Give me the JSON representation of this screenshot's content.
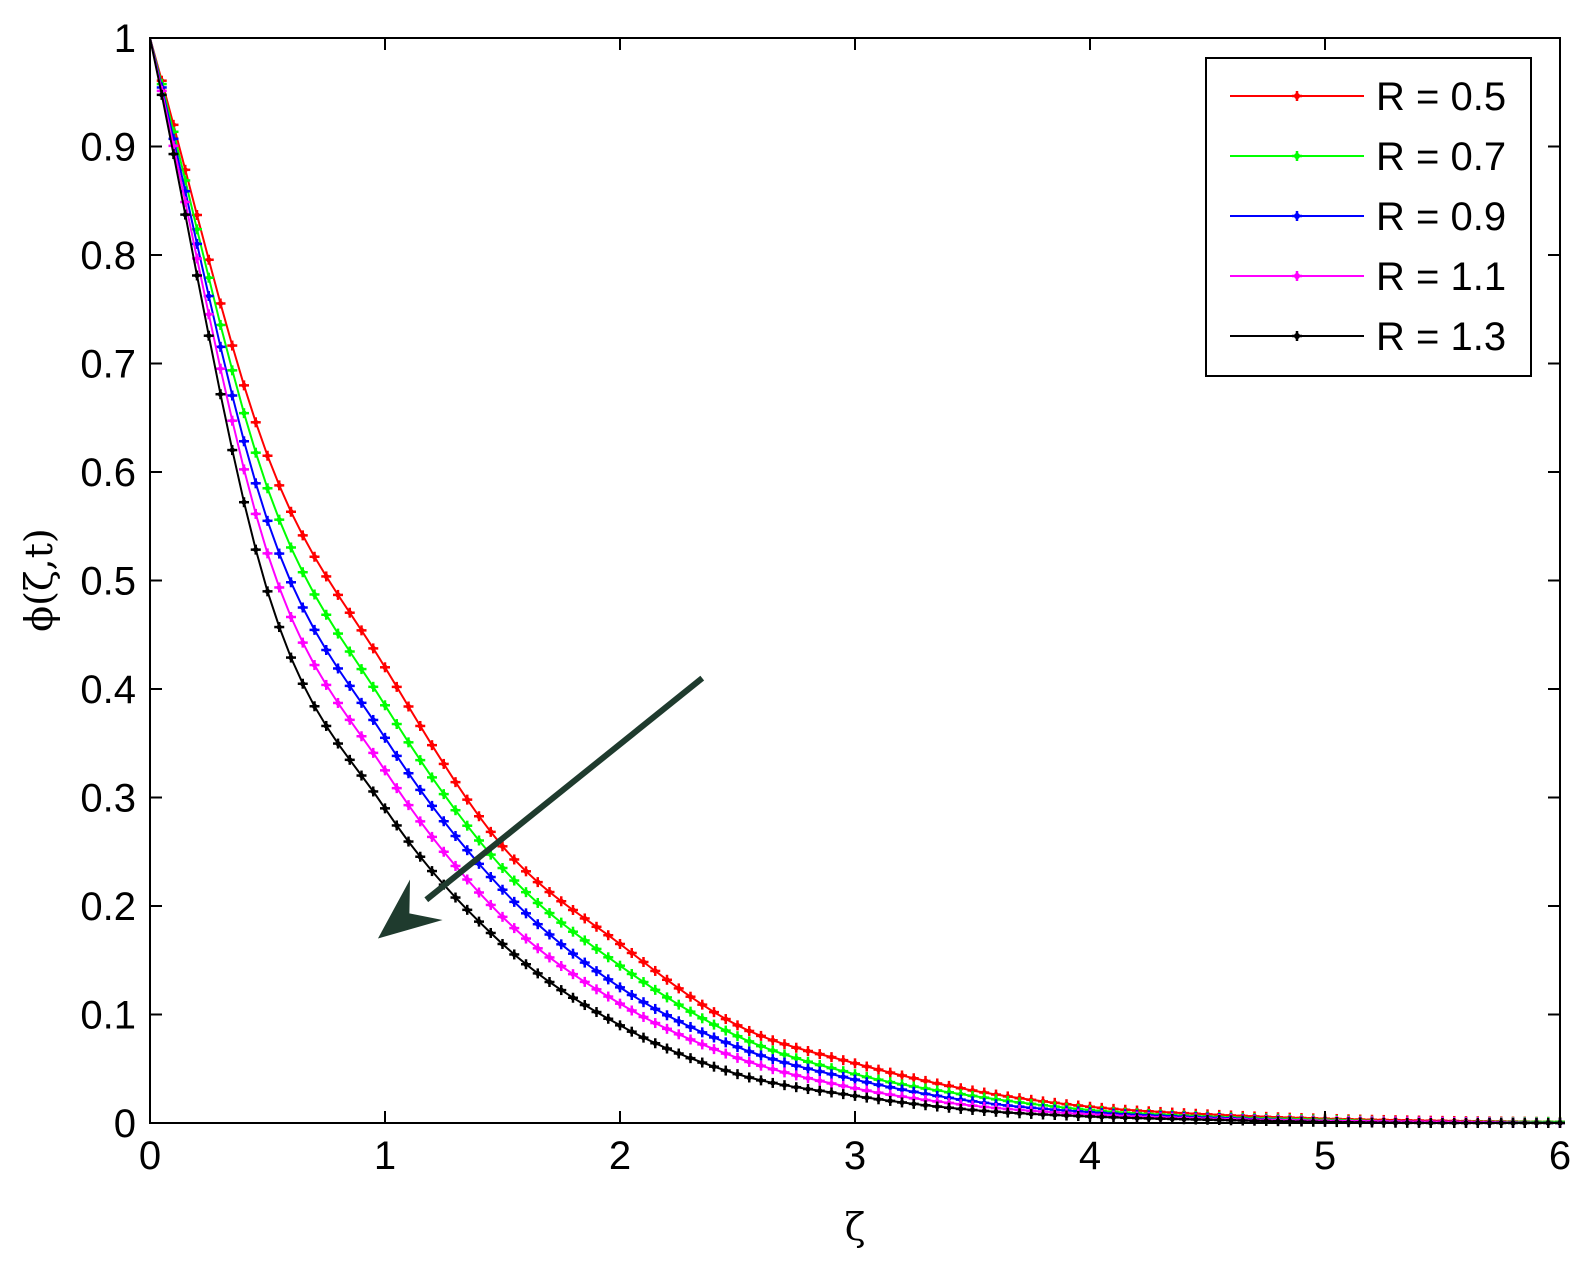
{
  "chart_data": {
    "type": "line",
    "title": "",
    "xlabel": "ζ",
    "ylabel": "ϕ(ζ,t)",
    "xlim": [
      0,
      6
    ],
    "ylim": [
      0,
      1
    ],
    "xticks": [
      "0",
      "1",
      "2",
      "3",
      "4",
      "5",
      "6"
    ],
    "yticks": [
      "0",
      "0.1",
      "0.2",
      "0.3",
      "0.4",
      "0.5",
      "0.6",
      "0.7",
      "0.8",
      "0.9",
      "1"
    ],
    "grid": false,
    "legend_position": "top-right",
    "x": [
      0,
      0.5,
      1,
      1.5,
      2,
      2.5,
      3,
      3.5,
      4,
      4.5,
      5,
      5.5,
      6
    ],
    "series": [
      {
        "name": "R = 0.5",
        "color": "#ff0000",
        "values": [
          1,
          0.615,
          0.42,
          0.255,
          0.165,
          0.09,
          0.055,
          0.03,
          0.015,
          0.008,
          0.004,
          0.002,
          0.001
        ]
      },
      {
        "name": "R = 0.7",
        "color": "#00ff00",
        "values": [
          1,
          0.585,
          0.385,
          0.235,
          0.145,
          0.08,
          0.045,
          0.025,
          0.012,
          0.006,
          0.003,
          0.001,
          0.001
        ]
      },
      {
        "name": "R = 0.9",
        "color": "#0000ff",
        "values": [
          1,
          0.555,
          0.355,
          0.215,
          0.125,
          0.07,
          0.04,
          0.02,
          0.01,
          0.005,
          0.002,
          0.001,
          0.0
        ]
      },
      {
        "name": "R = 1.1",
        "color": "#ff00ff",
        "values": [
          1,
          0.525,
          0.325,
          0.19,
          0.11,
          0.06,
          0.032,
          0.016,
          0.008,
          0.004,
          0.002,
          0.001,
          0.0
        ]
      },
      {
        "name": "R = 1.3",
        "color": "#000000",
        "values": [
          1,
          0.49,
          0.29,
          0.165,
          0.09,
          0.045,
          0.025,
          0.012,
          0.006,
          0.003,
          0.001,
          0.0,
          0.0
        ]
      }
    ],
    "annotation": {
      "type": "arrow",
      "color": "#1f3b2e",
      "from": [
        2.35,
        0.41
      ],
      "to": [
        0.97,
        0.17
      ]
    }
  }
}
